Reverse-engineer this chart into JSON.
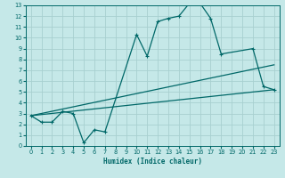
{
  "title": "",
  "xlabel": "Humidex (Indice chaleur)",
  "bg_color": "#c5e8e8",
  "grid_color": "#a8d0d0",
  "line_color": "#006868",
  "xlim": [
    -0.5,
    23.5
  ],
  "ylim": [
    0,
    13
  ],
  "xticks": [
    0,
    1,
    2,
    3,
    4,
    5,
    6,
    7,
    8,
    9,
    10,
    11,
    12,
    13,
    14,
    15,
    16,
    17,
    18,
    19,
    20,
    21,
    22,
    23
  ],
  "yticks": [
    0,
    1,
    2,
    3,
    4,
    5,
    6,
    7,
    8,
    9,
    10,
    11,
    12,
    13
  ],
  "curve1_x": [
    0,
    1,
    2,
    3,
    4,
    5,
    6,
    7,
    10,
    11,
    12,
    13,
    14,
    15,
    16,
    17,
    18,
    21,
    22,
    23
  ],
  "curve1_y": [
    2.8,
    2.2,
    2.2,
    3.2,
    3.0,
    0.3,
    1.5,
    1.3,
    10.3,
    8.3,
    11.5,
    11.8,
    12.0,
    13.2,
    13.2,
    11.8,
    8.5,
    9.0,
    5.5,
    5.2
  ],
  "curve2_x": [
    0,
    23
  ],
  "curve2_y": [
    2.8,
    5.2
  ],
  "curve3_x": [
    0,
    23
  ],
  "curve3_y": [
    2.8,
    7.5
  ],
  "xlabel_fontsize": 5.5,
  "tick_fontsize": 4.8,
  "linewidth": 0.9,
  "marker_size": 2.5
}
